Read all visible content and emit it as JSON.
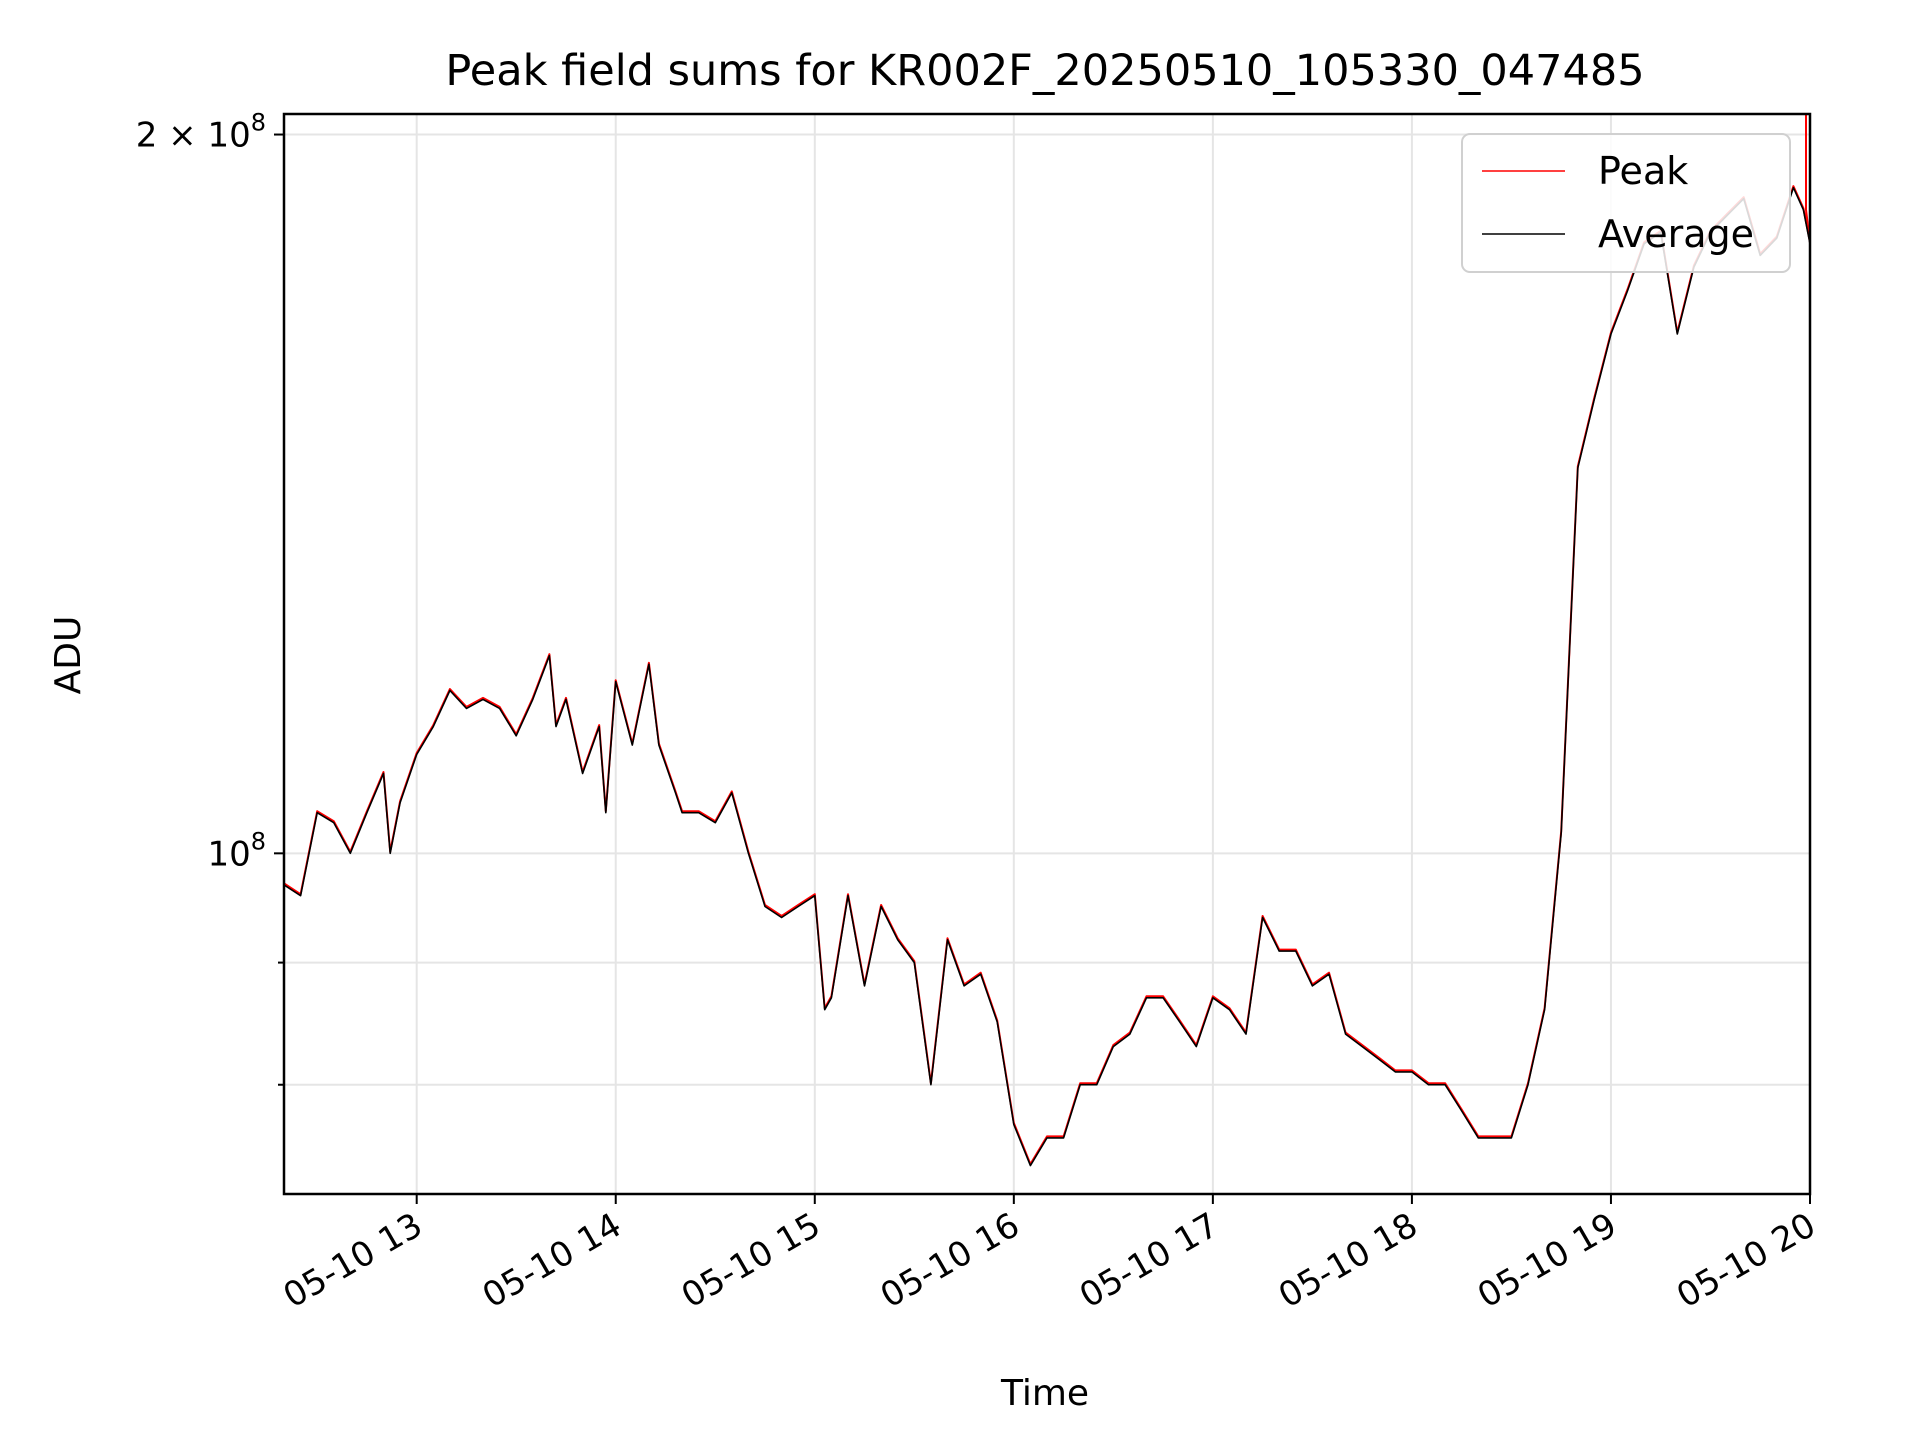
{
  "chart_data": {
    "type": "line",
    "title": "Peak field sums for KR002F_20250510_105330_047485",
    "xlabel": "Time",
    "ylabel": "ADU",
    "yscale": "log",
    "xlim": [
      "2025-05-10T12:20",
      "2025-05-10T20:00"
    ],
    "ylim": [
      72000000,
      204000000
    ],
    "x_ticks": [
      "05-10 13",
      "05-10 14",
      "05-10 15",
      "05-10 16",
      "05-10 17",
      "05-10 18",
      "05-10 19",
      "05-10 20"
    ],
    "y_ticks_labeled": [
      {
        "value": 100000000,
        "base": "10",
        "exp": "8",
        "prefix": ""
      },
      {
        "value": 200000000,
        "base": "10",
        "exp": "8",
        "prefix": "2 × "
      }
    ],
    "y_minor_gridlines": [
      80000000,
      90000000
    ],
    "grid": true,
    "legend": {
      "placement": "top-right"
    },
    "series": [
      {
        "name": "Peak",
        "color": "#ff0000",
        "x": [
          "2025-05-10T20:00"
        ],
        "y": [
          204000000
        ]
      },
      {
        "name": "Average",
        "color": "#000000",
        "x": [
          "2025-05-10T12:20",
          "2025-05-10T12:25",
          "2025-05-10T12:30",
          "2025-05-10T12:35",
          "2025-05-10T12:40",
          "2025-05-10T12:45",
          "2025-05-10T12:50",
          "2025-05-10T12:52",
          "2025-05-10T12:55",
          "2025-05-10T13:00",
          "2025-05-10T13:05",
          "2025-05-10T13:10",
          "2025-05-10T13:15",
          "2025-05-10T13:20",
          "2025-05-10T13:25",
          "2025-05-10T13:30",
          "2025-05-10T13:35",
          "2025-05-10T13:40",
          "2025-05-10T13:42",
          "2025-05-10T13:45",
          "2025-05-10T13:50",
          "2025-05-10T13:55",
          "2025-05-10T13:57",
          "2025-05-10T14:00",
          "2025-05-10T14:05",
          "2025-05-10T14:10",
          "2025-05-10T14:13",
          "2025-05-10T14:18",
          "2025-05-10T14:20",
          "2025-05-10T14:25",
          "2025-05-10T14:30",
          "2025-05-10T14:35",
          "2025-05-10T14:40",
          "2025-05-10T14:45",
          "2025-05-10T14:50",
          "2025-05-10T14:55",
          "2025-05-10T15:00",
          "2025-05-10T15:03",
          "2025-05-10T15:05",
          "2025-05-10T15:10",
          "2025-05-10T15:15",
          "2025-05-10T15:20",
          "2025-05-10T15:25",
          "2025-05-10T15:30",
          "2025-05-10T15:35",
          "2025-05-10T15:40",
          "2025-05-10T15:45",
          "2025-05-10T15:50",
          "2025-05-10T15:55",
          "2025-05-10T16:00",
          "2025-05-10T16:05",
          "2025-05-10T16:10",
          "2025-05-10T16:15",
          "2025-05-10T16:20",
          "2025-05-10T16:25",
          "2025-05-10T16:30",
          "2025-05-10T16:35",
          "2025-05-10T16:40",
          "2025-05-10T16:45",
          "2025-05-10T16:50",
          "2025-05-10T16:55",
          "2025-05-10T17:00",
          "2025-05-10T17:05",
          "2025-05-10T17:10",
          "2025-05-10T17:15",
          "2025-05-10T17:20",
          "2025-05-10T17:25",
          "2025-05-10T17:30",
          "2025-05-10T17:35",
          "2025-05-10T17:40",
          "2025-05-10T17:45",
          "2025-05-10T17:50",
          "2025-05-10T17:55",
          "2025-05-10T18:00",
          "2025-05-10T18:05",
          "2025-05-10T18:10",
          "2025-05-10T18:15",
          "2025-05-10T18:20",
          "2025-05-10T18:25",
          "2025-05-10T18:30",
          "2025-05-10T18:35",
          "2025-05-10T18:40",
          "2025-05-10T18:45",
          "2025-05-10T18:50",
          "2025-05-10T18:55",
          "2025-05-10T19:00",
          "2025-05-10T19:05",
          "2025-05-10T19:10",
          "2025-05-10T19:15",
          "2025-05-10T19:20",
          "2025-05-10T19:25",
          "2025-05-10T19:30",
          "2025-05-10T19:35",
          "2025-05-10T19:40",
          "2025-05-10T19:45",
          "2025-05-10T19:50",
          "2025-05-10T19:55",
          "2025-05-10T19:58",
          "2025-05-10T20:00"
        ],
        "y": [
          97000000,
          96000000,
          104000000,
          103000000,
          100000000,
          104000000,
          108000000,
          100000000,
          105000000,
          110000000,
          113000000,
          117000000,
          115000000,
          116000000,
          115000000,
          112000000,
          116000000,
          121000000,
          113000000,
          116000000,
          108000000,
          113000000,
          104000000,
          118000000,
          111000000,
          120000000,
          111000000,
          106000000,
          104000000,
          104000000,
          103000000,
          106000000,
          100000000,
          95000000,
          94000000,
          95000000,
          96000000,
          86000000,
          87000000,
          96000000,
          88000000,
          95000000,
          92000000,
          90000000,
          80000000,
          92000000,
          88000000,
          89000000,
          85000000,
          77000000,
          74000000,
          76000000,
          76000000,
          80000000,
          80000000,
          83000000,
          84000000,
          87000000,
          87000000,
          85000000,
          83000000,
          87000000,
          86000000,
          84000000,
          94000000,
          91000000,
          91000000,
          88000000,
          89000000,
          84000000,
          83000000,
          82000000,
          81000000,
          81000000,
          80000000,
          80000000,
          78000000,
          76000000,
          76000000,
          76000000,
          80000000,
          86000000,
          102000000,
          145000000,
          155000000,
          165000000,
          172000000,
          180000000,
          182000000,
          165000000,
          176000000,
          182000000,
          185000000,
          188000000,
          178000000,
          181000000,
          190000000,
          186000000,
          180000000
        ]
      }
    ]
  }
}
